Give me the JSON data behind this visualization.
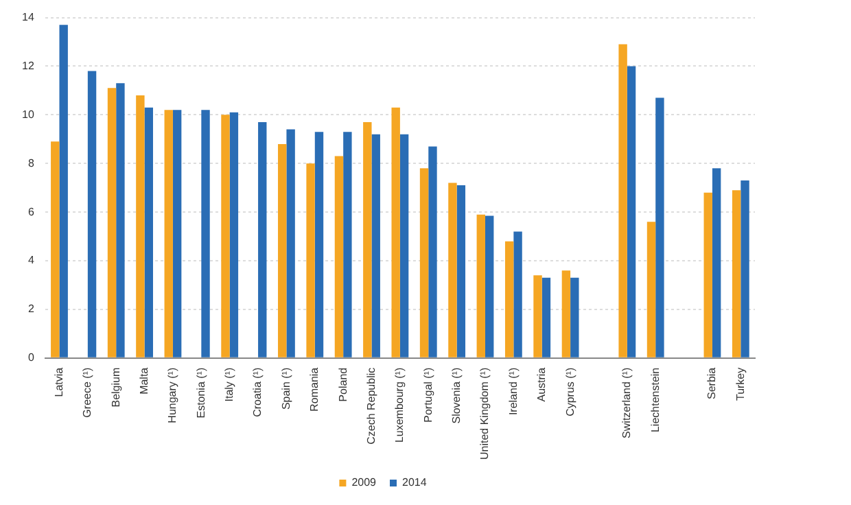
{
  "chart_data": {
    "type": "bar",
    "categories": [
      "Latvia",
      "Greece (¹)",
      "Belgium",
      "Malta",
      "Hungary (¹)",
      "Estonia (¹)",
      "Italy (¹)",
      "Croatia (¹)",
      "Spain (¹)",
      "Romania",
      "Poland",
      "Czech Republic",
      "Luxembourg (¹)",
      "Portugal (¹)",
      "Slovenia (¹)",
      "United Kingdom (¹)",
      "Ireland (¹)",
      "Austria",
      "Cyprus (¹)",
      null,
      "Switzerland (¹)",
      "Liechtenstein",
      null,
      "Serbia",
      "Turkey"
    ],
    "series": [
      {
        "name": "2009",
        "color": "#f5a623",
        "values": [
          8.9,
          null,
          11.1,
          10.8,
          10.2,
          null,
          10.0,
          null,
          8.8,
          8.0,
          8.3,
          9.7,
          10.3,
          7.8,
          7.2,
          5.9,
          4.8,
          3.4,
          3.6,
          null,
          12.9,
          5.6,
          null,
          6.8,
          6.9
        ]
      },
      {
        "name": "2014",
        "color": "#2a6db5",
        "values": [
          13.7,
          11.8,
          11.3,
          10.3,
          10.2,
          10.2,
          10.1,
          9.7,
          9.4,
          9.3,
          9.3,
          9.2,
          9.2,
          8.7,
          7.1,
          5.85,
          5.2,
          3.3,
          3.3,
          null,
          12.0,
          10.7,
          null,
          7.8,
          7.3
        ]
      }
    ],
    "ylim": [
      0,
      14
    ],
    "yticks": [
      0,
      2,
      4,
      6,
      8,
      10,
      12,
      14
    ],
    "grid": "y",
    "legend": "bottom"
  }
}
